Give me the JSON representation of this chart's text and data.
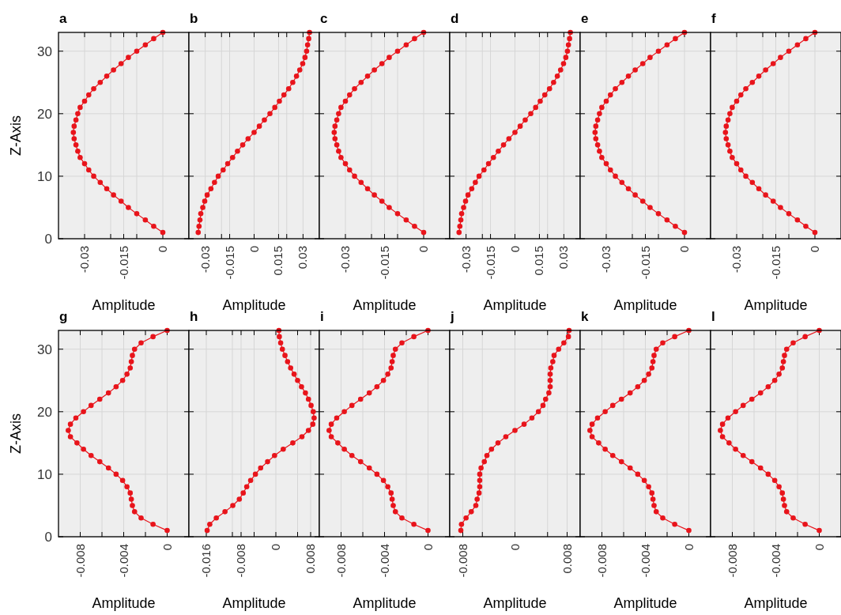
{
  "chart_data": [
    {
      "type": "line",
      "title": "a",
      "xlabel": "Amplitude",
      "ylabel": "Z-Axis",
      "color": "#e8141b",
      "marker": "circle",
      "grid": true,
      "xlim": [
        -0.04,
        0.01
      ],
      "ylim": [
        0,
        33
      ],
      "xticks": [
        -0.03,
        {
          "value": -0.02,
          "label": null
        },
        -0.015,
        {
          "value": -0.01,
          "label": null
        },
        0
      ],
      "yticks": [
        0,
        10,
        20,
        30
      ],
      "x": [
        0,
        -0.0035,
        -0.0067,
        -0.01,
        -0.0132,
        -0.016,
        -0.0189,
        -0.0215,
        -0.024,
        -0.0265,
        -0.0284,
        -0.03,
        -0.0317,
        -0.0326,
        -0.0333,
        -0.034,
        -0.0343,
        -0.034,
        -0.0333,
        -0.0326,
        -0.0317,
        -0.03,
        -0.0284,
        -0.0265,
        -0.024,
        -0.0215,
        -0.0189,
        -0.016,
        -0.0132,
        -0.01,
        -0.0067,
        -0.0035,
        0
      ],
      "values": [
        1,
        2,
        3,
        4,
        5,
        6,
        7,
        8,
        9,
        10,
        11,
        12,
        13,
        14,
        15,
        16,
        17,
        18,
        19,
        20,
        21,
        22,
        23,
        24,
        25,
        26,
        27,
        28,
        29,
        30,
        31,
        32,
        33
      ]
    },
    {
      "type": "line",
      "title": "b",
      "xlabel": "Amplitude",
      "color": "#e8141b",
      "marker": "circle",
      "grid": true,
      "tick_labels": "x",
      "xlim": [
        -0.04,
        0.04
      ],
      "ylim": [
        0,
        33
      ],
      "xticks": [
        -0.03,
        {
          "value": -0.02,
          "label": null
        },
        -0.015,
        0,
        0.015,
        {
          "value": 0.02,
          "label": null
        },
        0.03
      ],
      "yticks": [
        0,
        10,
        20,
        30
      ],
      "x": [
        -0.0343,
        -0.0338,
        -0.0332,
        -0.0327,
        -0.0315,
        -0.0303,
        -0.0288,
        -0.0265,
        -0.0243,
        -0.022,
        -0.019,
        -0.0162,
        -0.0132,
        -0.0102,
        -0.007,
        -0.0037,
        0,
        0.0032,
        0.0063,
        0.0097,
        0.0127,
        0.0155,
        0.0183,
        0.0212,
        0.0237,
        0.026,
        0.028,
        0.0298,
        0.0312,
        0.0322,
        0.0328,
        0.0335,
        0.034
      ],
      "values": [
        1,
        2,
        3,
        4,
        5,
        6,
        7,
        8,
        9,
        10,
        11,
        12,
        13,
        14,
        15,
        16,
        17,
        18,
        19,
        20,
        21,
        22,
        23,
        24,
        25,
        26,
        27,
        28,
        29,
        30,
        31,
        32,
        33
      ]
    },
    {
      "type": "line",
      "title": "c",
      "xlabel": "Amplitude",
      "color": "#e8141b",
      "marker": "circle",
      "grid": true,
      "tick_labels": "x",
      "xlim": [
        -0.04,
        0.01
      ],
      "ylim": [
        0,
        33
      ],
      "xticks": [
        -0.03,
        {
          "value": -0.02,
          "label": null
        },
        -0.015,
        {
          "value": -0.01,
          "label": null
        },
        0
      ],
      "yticks": [
        0,
        10,
        20,
        30
      ],
      "x": [
        0,
        -0.0035,
        -0.0067,
        -0.01,
        -0.0132,
        -0.016,
        -0.0189,
        -0.0215,
        -0.024,
        -0.0265,
        -0.0284,
        -0.03,
        -0.0317,
        -0.0326,
        -0.0333,
        -0.034,
        -0.0343,
        -0.034,
        -0.0333,
        -0.0326,
        -0.0317,
        -0.03,
        -0.0284,
        -0.0265,
        -0.024,
        -0.0215,
        -0.0189,
        -0.016,
        -0.0132,
        -0.01,
        -0.0067,
        -0.0035,
        0
      ],
      "values": [
        1,
        2,
        3,
        4,
        5,
        6,
        7,
        8,
        9,
        10,
        11,
        12,
        13,
        14,
        15,
        16,
        17,
        18,
        19,
        20,
        21,
        22,
        23,
        24,
        25,
        26,
        27,
        28,
        29,
        30,
        31,
        32,
        33
      ]
    },
    {
      "type": "line",
      "title": "d",
      "xlabel": "Amplitude",
      "color": "#e8141b",
      "marker": "circle",
      "grid": true,
      "tick_labels": "x",
      "xlim": [
        -0.04,
        0.04
      ],
      "ylim": [
        0,
        33
      ],
      "xticks": [
        -0.03,
        {
          "value": -0.02,
          "label": null
        },
        -0.015,
        0,
        0.015,
        {
          "value": 0.02,
          "label": null
        },
        0.03
      ],
      "yticks": [
        0,
        10,
        20,
        30
      ],
      "x": [
        -0.0343,
        -0.0338,
        -0.0332,
        -0.0327,
        -0.0315,
        -0.0303,
        -0.0288,
        -0.0265,
        -0.0243,
        -0.022,
        -0.019,
        -0.0162,
        -0.0132,
        -0.0102,
        -0.007,
        -0.0037,
        0,
        0.0032,
        0.0063,
        0.0097,
        0.0127,
        0.0155,
        0.0183,
        0.0212,
        0.0237,
        0.026,
        0.028,
        0.0298,
        0.0312,
        0.0322,
        0.0328,
        0.0335,
        0.034
      ],
      "values": [
        1,
        2,
        3,
        4,
        5,
        6,
        7,
        8,
        9,
        10,
        11,
        12,
        13,
        14,
        15,
        16,
        17,
        18,
        19,
        20,
        21,
        22,
        23,
        24,
        25,
        26,
        27,
        28,
        29,
        30,
        31,
        32,
        33
      ]
    },
    {
      "type": "line",
      "title": "e",
      "xlabel": "Amplitude",
      "color": "#e8141b",
      "marker": "circle",
      "grid": true,
      "tick_labels": "x",
      "xlim": [
        -0.04,
        0.01
      ],
      "ylim": [
        0,
        33
      ],
      "xticks": [
        -0.03,
        {
          "value": -0.02,
          "label": null
        },
        -0.015,
        {
          "value": -0.01,
          "label": null
        },
        0
      ],
      "yticks": [
        0,
        10,
        20,
        30
      ],
      "x": [
        0,
        -0.0035,
        -0.0067,
        -0.01,
        -0.0132,
        -0.016,
        -0.0189,
        -0.0215,
        -0.024,
        -0.0265,
        -0.0284,
        -0.03,
        -0.0317,
        -0.0326,
        -0.0333,
        -0.034,
        -0.0343,
        -0.034,
        -0.0333,
        -0.0326,
        -0.0317,
        -0.03,
        -0.0284,
        -0.0265,
        -0.024,
        -0.0215,
        -0.0189,
        -0.016,
        -0.0132,
        -0.01,
        -0.0067,
        -0.0035,
        0
      ],
      "values": [
        1,
        2,
        3,
        4,
        5,
        6,
        7,
        8,
        9,
        10,
        11,
        12,
        13,
        14,
        15,
        16,
        17,
        18,
        19,
        20,
        21,
        22,
        23,
        24,
        25,
        26,
        27,
        28,
        29,
        30,
        31,
        32,
        33
      ]
    },
    {
      "type": "line",
      "title": "f",
      "xlabel": "Amplitude",
      "color": "#e8141b",
      "marker": "circle",
      "grid": true,
      "tick_labels": "x",
      "xlim": [
        -0.04,
        0.01
      ],
      "ylim": [
        0,
        33
      ],
      "xticks": [
        -0.03,
        {
          "value": -0.02,
          "label": null
        },
        -0.015,
        {
          "value": -0.01,
          "label": null
        },
        0
      ],
      "yticks": [
        0,
        10,
        20,
        30
      ],
      "x": [
        0,
        -0.0035,
        -0.0067,
        -0.01,
        -0.0132,
        -0.016,
        -0.0189,
        -0.0215,
        -0.024,
        -0.0265,
        -0.0284,
        -0.03,
        -0.0317,
        -0.0326,
        -0.0333,
        -0.034,
        -0.0343,
        -0.034,
        -0.0333,
        -0.0326,
        -0.0317,
        -0.03,
        -0.0284,
        -0.0265,
        -0.024,
        -0.0215,
        -0.0189,
        -0.016,
        -0.0132,
        -0.01,
        -0.0067,
        -0.0035,
        0
      ],
      "values": [
        1,
        2,
        3,
        4,
        5,
        6,
        7,
        8,
        9,
        10,
        11,
        12,
        13,
        14,
        15,
        16,
        17,
        18,
        19,
        20,
        21,
        22,
        23,
        24,
        25,
        26,
        27,
        28,
        29,
        30,
        31,
        32,
        33
      ]
    },
    {
      "type": "line",
      "title": "g",
      "xlabel": "Amplitude",
      "ylabel": "Z-Axis",
      "color": "#e8141b",
      "marker": "circle",
      "grid": true,
      "xlim": [
        -0.01,
        0.002
      ],
      "ylim": [
        0,
        33
      ],
      "xticks": [
        -0.008,
        {
          "value": -0.006,
          "label": null
        },
        -0.004,
        {
          "value": -0.002,
          "label": null
        },
        0
      ],
      "yticks": [
        0,
        10,
        20,
        30
      ],
      "x": [
        0,
        -0.0013,
        -0.0024,
        -0.003,
        -0.0032,
        -0.0033,
        -0.0034,
        -0.0037,
        -0.0041,
        -0.0047,
        -0.0054,
        -0.0062,
        -0.007,
        -0.0077,
        -0.0083,
        -0.0089,
        -0.0091,
        -0.0089,
        -0.0084,
        -0.0077,
        -0.007,
        -0.0062,
        -0.0054,
        -0.0047,
        -0.0041,
        -0.0037,
        -0.0034,
        -0.0033,
        -0.0032,
        -0.003,
        -0.0024,
        -0.0013,
        0
      ],
      "values": [
        1,
        2,
        3,
        4,
        5,
        6,
        7,
        8,
        9,
        10,
        11,
        12,
        13,
        14,
        15,
        16,
        17,
        18,
        19,
        20,
        21,
        22,
        23,
        24,
        25,
        26,
        27,
        28,
        29,
        30,
        31,
        32,
        33
      ]
    },
    {
      "type": "line",
      "title": "h",
      "xlabel": "Amplitude",
      "color": "#e8141b",
      "marker": "circle",
      "grid": true,
      "tick_labels": "x",
      "xlim": [
        -0.02,
        0.01
      ],
      "ylim": [
        0,
        33
      ],
      "xticks": [
        -0.016,
        {
          "value": -0.01,
          "label": null
        },
        -0.008,
        {
          "value": -0.005,
          "label": null
        },
        0,
        {
          "value": 0.005,
          "label": null
        },
        0.008
      ],
      "yticks": [
        0,
        10,
        20,
        30
      ],
      "x": [
        -0.0158,
        -0.0152,
        -0.0137,
        -0.0117,
        -0.0099,
        -0.0084,
        -0.0075,
        -0.0067,
        -0.0058,
        -0.0047,
        -0.0035,
        -0.0019,
        -0.0003,
        0.0017,
        0.0039,
        0.006,
        0.0075,
        0.0085,
        0.0088,
        0.0086,
        0.0081,
        0.0075,
        0.0068,
        0.0059,
        0.005,
        0.0042,
        0.0034,
        0.0027,
        0.0021,
        0.0015,
        0.0011,
        0.0008,
        0.0007
      ],
      "values": [
        1,
        2,
        3,
        4,
        5,
        6,
        7,
        8,
        9,
        10,
        11,
        12,
        13,
        14,
        15,
        16,
        17,
        18,
        19,
        20,
        21,
        22,
        23,
        24,
        25,
        26,
        27,
        28,
        29,
        30,
        31,
        32,
        33
      ]
    },
    {
      "type": "line",
      "title": "i",
      "xlabel": "Amplitude",
      "color": "#e8141b",
      "marker": "circle",
      "grid": true,
      "tick_labels": "x",
      "xlim": [
        -0.01,
        0.002
      ],
      "ylim": [
        0,
        33
      ],
      "xticks": [
        -0.008,
        {
          "value": -0.006,
          "label": null
        },
        -0.004,
        {
          "value": -0.002,
          "label": null
        },
        0
      ],
      "yticks": [
        0,
        10,
        20,
        30
      ],
      "x": [
        0,
        -0.0013,
        -0.0024,
        -0.003,
        -0.0032,
        -0.0033,
        -0.0034,
        -0.0037,
        -0.0041,
        -0.0047,
        -0.0054,
        -0.0062,
        -0.007,
        -0.0077,
        -0.0083,
        -0.0089,
        -0.0091,
        -0.0089,
        -0.0084,
        -0.0077,
        -0.007,
        -0.0062,
        -0.0054,
        -0.0047,
        -0.0041,
        -0.0037,
        -0.0034,
        -0.0033,
        -0.0032,
        -0.003,
        -0.0024,
        -0.0013,
        0
      ],
      "values": [
        1,
        2,
        3,
        4,
        5,
        6,
        7,
        8,
        9,
        10,
        11,
        12,
        13,
        14,
        15,
        16,
        17,
        18,
        19,
        20,
        21,
        22,
        23,
        24,
        25,
        26,
        27,
        28,
        29,
        30,
        31,
        32,
        33
      ]
    },
    {
      "type": "line",
      "title": "j",
      "xlabel": "Amplitude",
      "color": "#e8141b",
      "marker": "circle",
      "grid": true,
      "tick_labels": "x",
      "xlim": [
        -0.01,
        0.01
      ],
      "ylim": [
        0,
        33
      ],
      "xticks": [
        -0.008,
        {
          "value": -0.005,
          "label": null
        },
        0,
        {
          "value": 0.005,
          "label": null
        },
        0.008
      ],
      "yticks": [
        0,
        10,
        20,
        30
      ],
      "x": [
        -0.0083,
        -0.0082,
        -0.0075,
        -0.0067,
        -0.006,
        -0.0058,
        -0.0055,
        -0.0054,
        -0.0054,
        -0.0054,
        -0.0052,
        -0.0047,
        -0.0043,
        -0.0036,
        -0.0026,
        -0.0014,
        0,
        0.0014,
        0.0026,
        0.0036,
        0.0043,
        0.0047,
        0.0052,
        0.0054,
        0.0054,
        0.0054,
        0.0055,
        0.0058,
        0.006,
        0.0067,
        0.0075,
        0.0082,
        0.0083
      ],
      "values": [
        1,
        2,
        3,
        4,
        5,
        6,
        7,
        8,
        9,
        10,
        11,
        12,
        13,
        14,
        15,
        16,
        17,
        18,
        19,
        20,
        21,
        22,
        23,
        24,
        25,
        26,
        27,
        28,
        29,
        30,
        31,
        32,
        33
      ]
    },
    {
      "type": "line",
      "title": "k",
      "xlabel": "Amplitude",
      "color": "#e8141b",
      "marker": "circle",
      "grid": true,
      "tick_labels": "x",
      "xlim": [
        -0.01,
        0.002
      ],
      "ylim": [
        0,
        33
      ],
      "xticks": [
        -0.008,
        {
          "value": -0.006,
          "label": null
        },
        -0.004,
        {
          "value": -0.002,
          "label": null
        },
        0
      ],
      "yticks": [
        0,
        10,
        20,
        30
      ],
      "x": [
        0,
        -0.0013,
        -0.0024,
        -0.003,
        -0.0032,
        -0.0033,
        -0.0034,
        -0.0037,
        -0.0041,
        -0.0047,
        -0.0054,
        -0.0062,
        -0.007,
        -0.0077,
        -0.0083,
        -0.0089,
        -0.0091,
        -0.0089,
        -0.0084,
        -0.0077,
        -0.007,
        -0.0062,
        -0.0054,
        -0.0047,
        -0.0041,
        -0.0037,
        -0.0034,
        -0.0033,
        -0.0032,
        -0.003,
        -0.0024,
        -0.0013,
        0
      ],
      "values": [
        1,
        2,
        3,
        4,
        5,
        6,
        7,
        8,
        9,
        10,
        11,
        12,
        13,
        14,
        15,
        16,
        17,
        18,
        19,
        20,
        21,
        22,
        23,
        24,
        25,
        26,
        27,
        28,
        29,
        30,
        31,
        32,
        33
      ]
    },
    {
      "type": "line",
      "title": "l",
      "xlabel": "Amplitude",
      "color": "#e8141b",
      "marker": "circle",
      "grid": true,
      "tick_labels": "x",
      "xlim": [
        -0.01,
        0.002
      ],
      "ylim": [
        0,
        33
      ],
      "xticks": [
        -0.008,
        {
          "value": -0.006,
          "label": null
        },
        -0.004,
        {
          "value": -0.002,
          "label": null
        },
        0
      ],
      "yticks": [
        0,
        10,
        20,
        30
      ],
      "x": [
        0,
        -0.0013,
        -0.0024,
        -0.003,
        -0.0032,
        -0.0033,
        -0.0034,
        -0.0037,
        -0.0041,
        -0.0047,
        -0.0054,
        -0.0062,
        -0.007,
        -0.0077,
        -0.0083,
        -0.0089,
        -0.0091,
        -0.0089,
        -0.0084,
        -0.0077,
        -0.007,
        -0.0062,
        -0.0054,
        -0.0047,
        -0.0041,
        -0.0037,
        -0.0034,
        -0.0033,
        -0.0032,
        -0.003,
        -0.0024,
        -0.0013,
        0
      ],
      "values": [
        1,
        2,
        3,
        4,
        5,
        6,
        7,
        8,
        9,
        10,
        11,
        12,
        13,
        14,
        15,
        16,
        17,
        18,
        19,
        20,
        21,
        22,
        23,
        24,
        25,
        26,
        27,
        28,
        29,
        30,
        31,
        32,
        33
      ]
    }
  ]
}
